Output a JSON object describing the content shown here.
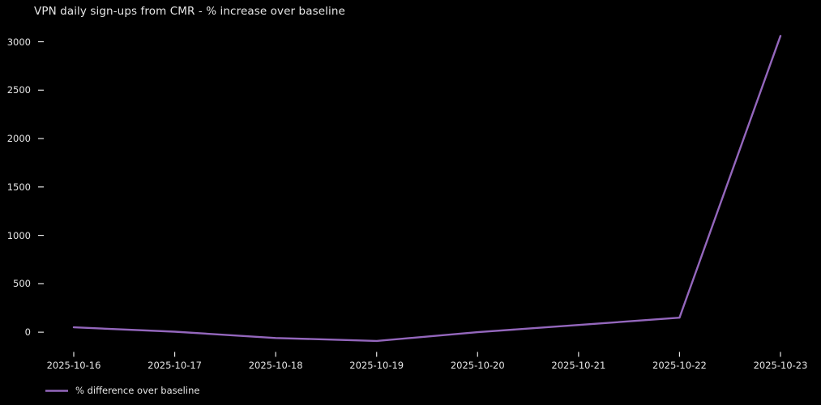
{
  "colors": {
    "background": "#000000",
    "text": "#e6e6e6",
    "line": "#9467bd"
  },
  "legend": {
    "label": "% difference over baseline"
  },
  "chart_data": {
    "type": "line",
    "title": "VPN daily sign-ups from CMR - % increase over baseline",
    "x": [
      "2025-10-16",
      "2025-10-17",
      "2025-10-18",
      "2025-10-19",
      "2025-10-20",
      "2025-10-21",
      "2025-10-22",
      "2025-10-23"
    ],
    "series": [
      {
        "name": "% difference over baseline",
        "values": [
          50,
          5,
          -60,
          -90,
          0,
          75,
          150,
          3060
        ]
      }
    ],
    "xlabel": "",
    "ylabel": "",
    "yticks": [
      0,
      500,
      1000,
      1500,
      2000,
      2500,
      3000
    ],
    "ylim": [
      -250,
      3180
    ],
    "grid": false,
    "legend_position": "lower left below axis"
  }
}
